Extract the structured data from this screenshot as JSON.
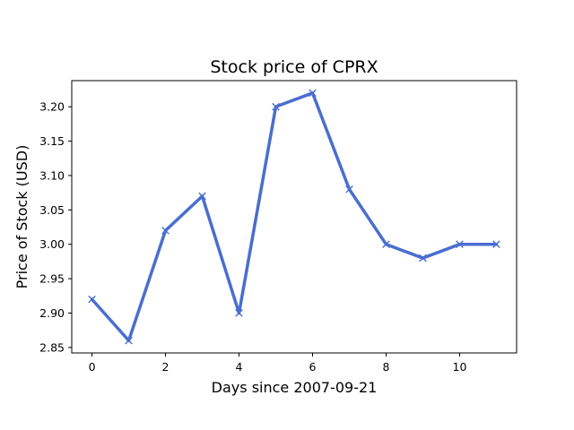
{
  "chart_data": {
    "type": "line",
    "title": "Stock price of CPRX",
    "xlabel": "Days since 2007-09-21",
    "ylabel": "Price of Stock (USD)",
    "x": [
      0,
      1,
      2,
      3,
      4,
      5,
      6,
      7,
      8,
      9,
      10,
      11
    ],
    "series": [
      {
        "values": [
          2.92,
          2.86,
          3.02,
          3.07,
          2.9,
          3.2,
          3.22,
          3.08,
          3.0,
          2.98,
          3.0,
          3.0
        ],
        "color": "#4a6ecf",
        "marker": "x"
      }
    ],
    "xlim": [
      -0.55,
      11.55
    ],
    "ylim": [
      2.842,
      3.238
    ],
    "xticks": [
      0,
      2,
      4,
      6,
      8,
      10
    ],
    "xtick_labels": [
      "0",
      "2",
      "4",
      "6",
      "8",
      "10"
    ],
    "yticks": [
      2.85,
      2.9,
      2.95,
      3.0,
      3.05,
      3.1,
      3.15,
      3.2
    ],
    "ytick_labels": [
      "2.85",
      "2.90",
      "2.95",
      "3.00",
      "3.05",
      "3.10",
      "3.15",
      "3.20"
    ],
    "grid": false,
    "legend": "none"
  }
}
